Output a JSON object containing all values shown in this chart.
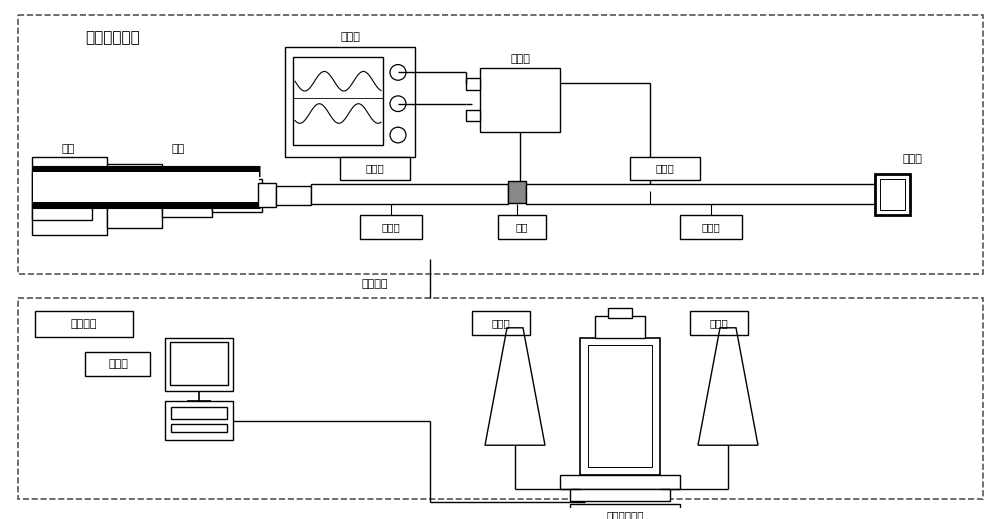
{
  "bg_color": "#ffffff",
  "line_color": "#000000",
  "gray_fill": "#888888",
  "labels": {
    "dynamic_system": "动态加载系统",
    "oscilloscope": "示波器",
    "amplifier": "放大器",
    "air_chamber": "气室",
    "bullet": "子弹",
    "incident_bar": "入射杆",
    "transmission_bar": "透射杆",
    "absorber": "阵尼器",
    "strain_gauge1": "应变片",
    "specimen": "试件",
    "strain_gauge2": "应变片",
    "signal_trigger": "信号触发",
    "recording_system": "摄录系统",
    "workstation": "工作台",
    "flash_lamp1": "闪光灯",
    "flash_lamp2": "闪光灯",
    "high_speed_camera": "超高速摄像机"
  }
}
